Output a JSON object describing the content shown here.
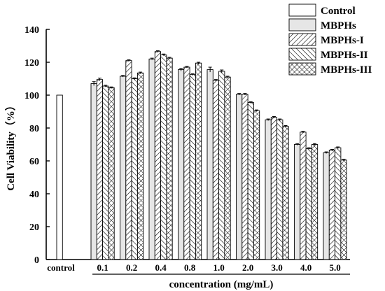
{
  "chart_data": {
    "type": "bar",
    "title": "",
    "xlabel": "concentration (mg/mL)",
    "ylabel": "Cell Viability（%）",
    "ylim": [
      0,
      140
    ],
    "yticks": [
      0,
      20,
      40,
      60,
      80,
      100,
      120,
      140
    ],
    "grid": false,
    "legend_position": "top-right",
    "control": {
      "category": "control",
      "series": "Control",
      "value": 100
    },
    "categories": [
      "0.1",
      "0.2",
      "0.4",
      "0.8",
      "1.0",
      "2.0",
      "3.0",
      "4.0",
      "5.0"
    ],
    "series": [
      {
        "name": "MBPHs",
        "pattern": "solid-gray",
        "values": [
          107,
          111.5,
          122,
          115.5,
          115.5,
          100.5,
          85,
          70,
          65
        ],
        "errors": [
          1.2,
          0.5,
          0.5,
          0.8,
          1.5,
          0.5,
          0.5,
          0.5,
          0.5
        ]
      },
      {
        "name": "MBPHs-I",
        "pattern": "diag-right",
        "values": [
          109.5,
          121,
          126.5,
          117,
          109,
          100.5,
          86.5,
          77.5,
          66.5
        ],
        "errors": [
          0.8,
          0.5,
          0.5,
          0.5,
          0.5,
          0.5,
          0.5,
          0.5,
          0.5
        ]
      },
      {
        "name": "MBPHs-II",
        "pattern": "diag-left",
        "values": [
          105.5,
          110,
          124.5,
          112.5,
          114.5,
          95.5,
          85,
          67.5,
          68
        ],
        "errors": [
          0.5,
          0.5,
          0.5,
          0.5,
          0.8,
          0.5,
          0.5,
          0.5,
          0.5
        ]
      },
      {
        "name": "MBPHs-III",
        "pattern": "crosshatch",
        "values": [
          104.5,
          113.5,
          122.5,
          119.5,
          111,
          90.5,
          81,
          70,
          60.5
        ],
        "errors": [
          0.5,
          0.5,
          0.5,
          0.5,
          0.5,
          0.5,
          0.5,
          0.5,
          0.5
        ]
      }
    ]
  }
}
